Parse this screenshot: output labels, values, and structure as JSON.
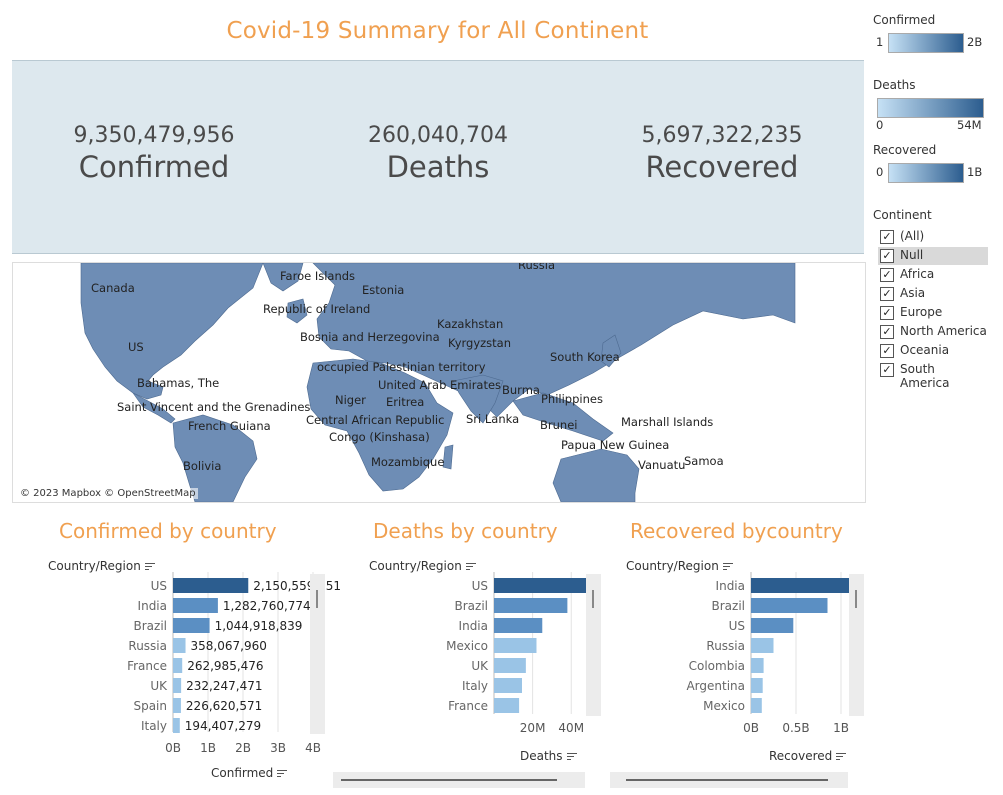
{
  "title": "Covid-19 Summary for All Continent",
  "kpis": [
    {
      "value": "9,350,479,956",
      "label": "Confirmed"
    },
    {
      "value": "260,040,704",
      "label": "Deaths"
    },
    {
      "value": "5,697,322,235",
      "label": "Recovered"
    }
  ],
  "map": {
    "attribution": "© 2023 Mapbox © OpenStreetMap",
    "land_color": "#6e8db5",
    "labels": [
      "Russia",
      "Faroe Islands",
      "Canada",
      "Estonia",
      "Republic of Ireland",
      "Kazakhstan",
      "US",
      "Bosnia and Herzegovina",
      "Kyrgyzstan",
      "occupied Palestinian territory",
      "South Korea",
      "Bahamas, The",
      "United Arab Emirates",
      "Burma",
      "Philippines",
      "Saint Vincent and the Grenadines",
      "Niger",
      "Eritrea",
      "Central African Republic",
      "Sri Lanka",
      "Marshall Islands",
      "French Guiana",
      "Brunei",
      "Congo (Kinshasa)",
      "Papua New Guinea",
      "Mozambique",
      "Vanuatu",
      "Samoa",
      "Bolivia"
    ]
  },
  "legends": {
    "confirmed": {
      "title": "Confirmed",
      "min": "1",
      "max": "2B"
    },
    "deaths": {
      "title": "Deaths",
      "min": "0",
      "max": "54M"
    },
    "recovered": {
      "title": "Recovered",
      "min": "0",
      "max": "1B"
    }
  },
  "continent_filter": {
    "title": "Continent",
    "items": [
      "(All)",
      "Null",
      "Africa",
      "Asia",
      "Europe",
      "North America",
      "Oceania",
      "South America"
    ],
    "selected_row": "Null"
  },
  "colors": {
    "accent": "#f0a050",
    "bar_dark": "#2c5d8f",
    "bar_mid": "#5b8fc3",
    "bar_light": "#9ac4e6"
  },
  "chart_data": [
    {
      "type": "bar",
      "title": "Confirmed by country",
      "xlabel": "Confirmed",
      "ylabel": "Country/Region",
      "categories": [
        "US",
        "India",
        "Brazil",
        "Russia",
        "France",
        "UK",
        "Spain",
        "Italy"
      ],
      "values": [
        2150559351,
        1282760774,
        1044918839,
        358067960,
        262985476,
        232247471,
        226620571,
        194407279
      ],
      "data_labels": [
        "2,150,559,351",
        "1,282,760,774",
        "1,044,918,839",
        "358,067,960",
        "262,985,476",
        "232,247,471",
        "226,620,571",
        "194,407,279"
      ],
      "xticks": [
        "0B",
        "1B",
        "2B",
        "3B",
        "4B"
      ],
      "xlim": [
        0,
        4000000000
      ]
    },
    {
      "type": "bar",
      "title": "Deaths by country",
      "xlabel": "Deaths",
      "ylabel": "Country/Region",
      "categories": [
        "US",
        "Brazil",
        "India",
        "Mexico",
        "UK",
        "Italy",
        "France"
      ],
      "values": [
        54000000,
        38000000,
        25000000,
        22000000,
        16500000,
        14500000,
        13000000
      ],
      "xticks": [
        "20M",
        "40M"
      ],
      "xlim": [
        0,
        58000000
      ]
    },
    {
      "type": "bar",
      "title": "Recovered bycountry",
      "xlabel": "Recovered",
      "ylabel": "Country/Region",
      "categories": [
        "India",
        "Brazil",
        "US",
        "Russia",
        "Colombia",
        "Argentina",
        "Mexico"
      ],
      "values": [
        1090000000,
        850000000,
        470000000,
        250000000,
        140000000,
        130000000,
        120000000
      ],
      "xticks": [
        "0B",
        "0.5B",
        "1B"
      ],
      "xlim": [
        0,
        1200000000
      ]
    }
  ]
}
